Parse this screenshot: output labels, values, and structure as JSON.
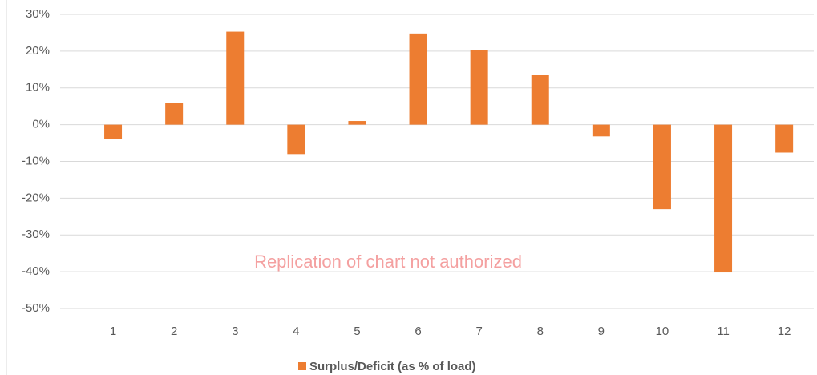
{
  "chart_data": {
    "type": "bar",
    "categories": [
      "1",
      "2",
      "3",
      "4",
      "5",
      "6",
      "7",
      "8",
      "9",
      "10",
      "11",
      "12"
    ],
    "series": [
      {
        "name": "Surplus/Deficit (as % of load)",
        "color": "#ed7d31",
        "values": [
          -4,
          6,
          25.3,
          -8,
          1,
          24.8,
          20.2,
          13.5,
          -3.2,
          -23,
          -40.2,
          -7.6
        ]
      }
    ],
    "ylim": [
      -50,
      30
    ],
    "yticks": [
      {
        "value": -50,
        "label": "-50%"
      },
      {
        "value": -40,
        "label": "-40%"
      },
      {
        "value": -30,
        "label": "-30%"
      },
      {
        "value": -20,
        "label": "-20%"
      },
      {
        "value": -10,
        "label": "-10%"
      },
      {
        "value": 0,
        "label": "0%"
      },
      {
        "value": 10,
        "label": "10%"
      },
      {
        "value": 20,
        "label": "20%"
      },
      {
        "value": 30,
        "label": "30%"
      }
    ],
    "grid": true,
    "annotation": "Replication of chart not authorized"
  }
}
